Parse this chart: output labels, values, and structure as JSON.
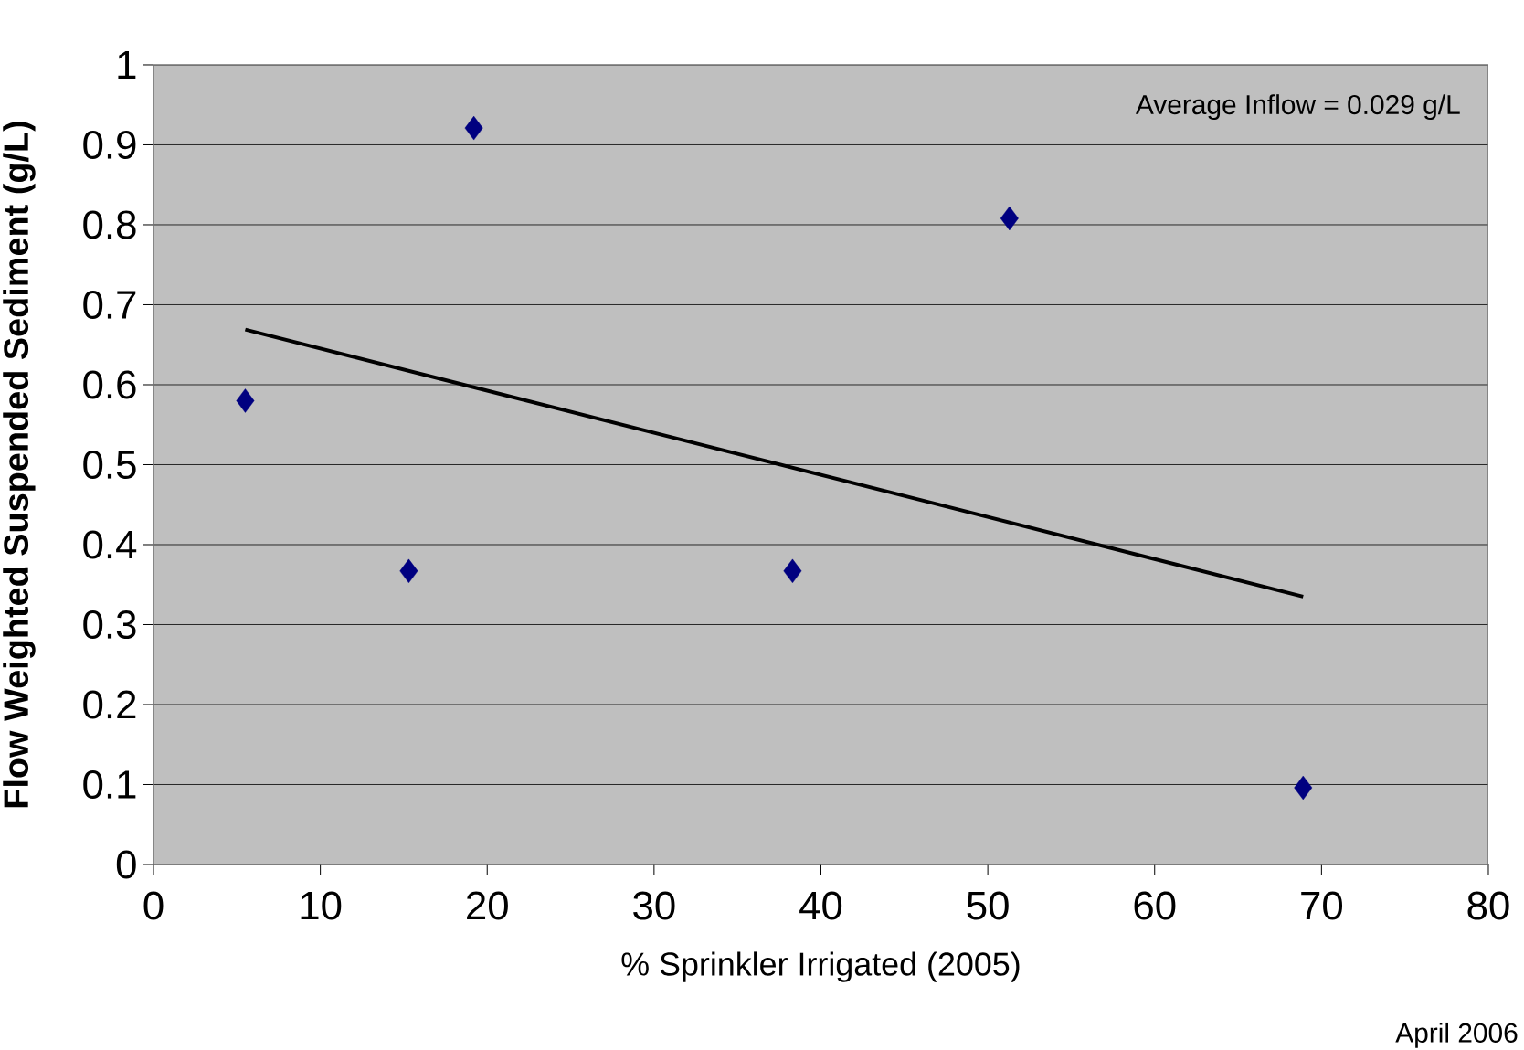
{
  "chart_data": {
    "type": "scatter",
    "xlabel": "% Sprinkler Irrigated (2005)",
    "ylabel": "Flow Weighted Suspended Sediment (g/L)",
    "xlim": [
      0,
      80
    ],
    "xticks": [
      0,
      10,
      20,
      30,
      40,
      50,
      60,
      70,
      80
    ],
    "ylim": [
      0,
      1
    ],
    "yticks": [
      0,
      0.1,
      0.2,
      0.3,
      0.4,
      0.5,
      0.6,
      0.7,
      0.8,
      0.9,
      1
    ],
    "grid": "y",
    "marker": "diamond",
    "series": [
      {
        "color": "#000080",
        "x": [
          5.5,
          15.3,
          19.2,
          38.3,
          51.3,
          68.9
        ],
        "values": [
          0.58,
          0.367,
          0.921,
          0.367,
          0.808,
          0.096
        ]
      },
      {
        "type": "line",
        "marker": "none",
        "color": "#000000",
        "x": [
          5.5,
          68.9
        ],
        "values": [
          0.669,
          0.335
        ]
      }
    ],
    "annotations": [
      "Average Inflow = 0.029 g/L",
      "April 2006"
    ]
  }
}
